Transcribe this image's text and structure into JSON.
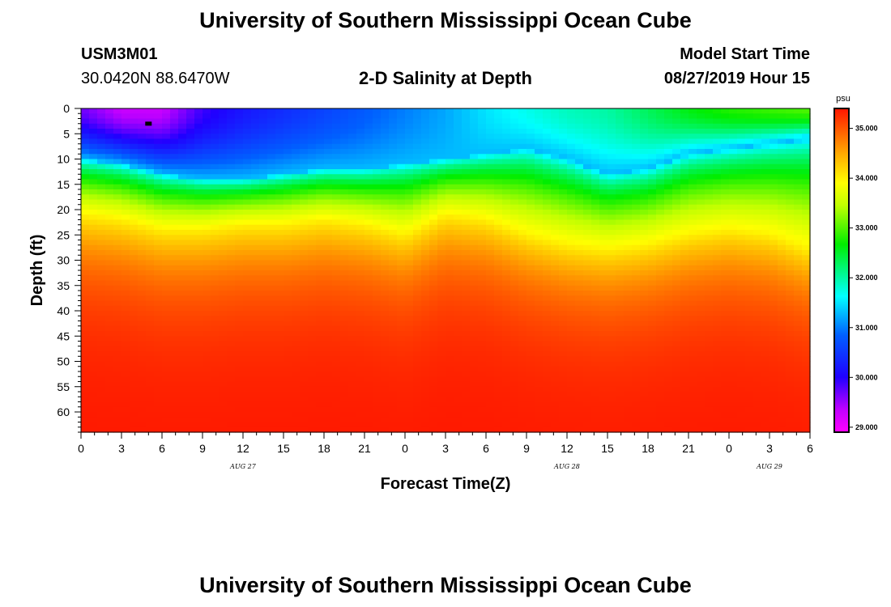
{
  "header": {
    "title": "University of Southern Mississippi Ocean Cube",
    "station_id": "USM3M01",
    "station_coords": "30.0420N 88.6470W",
    "plot_title": "2-D Salinity at Depth",
    "model_start_label": "Model Start Time",
    "model_start_value": "08/27/2019 Hour 15"
  },
  "footer": {
    "title": "University of Southern Mississippi Ocean Cube"
  },
  "chart_data": {
    "type": "heatmap",
    "title": "2-D Salinity at Depth",
    "xlabel": "Forecast Time(Z)",
    "ylabel": "Depth (ft)",
    "x_ticks": [
      "0",
      "3",
      "6",
      "9",
      "12",
      "15",
      "18",
      "21",
      "0",
      "3",
      "6",
      "9",
      "12",
      "15",
      "18",
      "21",
      "0",
      "3",
      "6"
    ],
    "x_range_hours": [
      0,
      54
    ],
    "date_labels": [
      {
        "hour": 12,
        "label": "AUG 27"
      },
      {
        "hour": 36,
        "label": "AUG 28"
      },
      {
        "hour": 51,
        "label": "AUG 29"
      }
    ],
    "y_ticks": [
      0,
      5,
      10,
      15,
      20,
      25,
      30,
      35,
      40,
      45,
      50,
      55,
      60
    ],
    "y_range_ft": [
      0,
      64
    ],
    "colorbar": {
      "unit": "psu",
      "min": 28.9,
      "max": 35.4,
      "ticks": [
        "29.000",
        "30.000",
        "31.000",
        "32.000",
        "33.000",
        "34.000",
        "35.000"
      ],
      "tick_values": [
        29,
        30,
        31,
        32,
        33,
        34,
        35
      ]
    },
    "surface_salinity": {
      "hours": [
        0,
        3,
        6,
        9,
        12,
        15,
        18,
        21,
        24,
        27,
        30,
        33,
        36,
        39,
        42,
        45,
        48,
        51,
        54
      ],
      "values": [
        29.7,
        29.3,
        29.3,
        29.9,
        30.2,
        30.4,
        30.6,
        30.8,
        31.0,
        31.2,
        31.5,
        31.7,
        31.9,
        32.0,
        32.3,
        32.6,
        32.8,
        32.9,
        33.0
      ]
    },
    "halocline_depth_ft": {
      "hours": [
        0,
        3,
        6,
        9,
        12,
        15,
        18,
        21,
        24,
        27,
        30,
        33,
        36,
        39,
        42,
        45,
        48,
        51,
        54
      ],
      "values": [
        10,
        11,
        13,
        14,
        14,
        13,
        12,
        12,
        11,
        10,
        9,
        8,
        10,
        13,
        12,
        9,
        8,
        7,
        6
      ]
    },
    "yellow_band_depth_ft": {
      "hours": [
        0,
        3,
        6,
        9,
        12,
        15,
        18,
        21,
        24,
        27,
        30,
        33,
        36,
        39,
        42,
        45,
        48,
        51,
        54
      ],
      "values": [
        21,
        22,
        24,
        24,
        23,
        23,
        22,
        23,
        25,
        21,
        22,
        25,
        27,
        28,
        27,
        25,
        24,
        25,
        28
      ]
    },
    "deep_salinity": 35.4,
    "marker": {
      "hour": 5,
      "depth_ft": 3
    }
  }
}
